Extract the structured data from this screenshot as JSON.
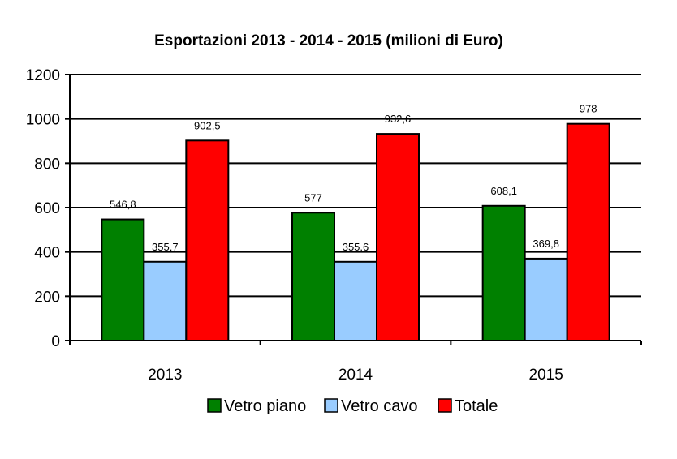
{
  "chart_data": {
    "type": "bar",
    "title": "Esportazioni 2013 - 2014 - 2015 (milioni di Euro)",
    "xlabel": "",
    "ylabel": "",
    "categories": [
      "2013",
      "2014",
      "2015"
    ],
    "series": [
      {
        "name": "Vetro piano",
        "color": "#008000",
        "values": [
          546.8,
          577,
          608.1
        ],
        "labels": [
          "546,8",
          "577",
          "608,1"
        ]
      },
      {
        "name": "Vetro cavo",
        "color": "#99CCFF",
        "values": [
          355.7,
          355.6,
          369.8
        ],
        "labels": [
          "355,7",
          "355,6",
          "369,8"
        ]
      },
      {
        "name": "Totale",
        "color": "#FF0000",
        "values": [
          902.5,
          932.6,
          978
        ],
        "labels": [
          "902,5",
          "932,6",
          "978"
        ]
      }
    ],
    "ylim": [
      0,
      1200
    ],
    "yticks": [
      0,
      200,
      400,
      600,
      800,
      1000,
      1200
    ],
    "grid": true,
    "legend_position": "bottom"
  }
}
